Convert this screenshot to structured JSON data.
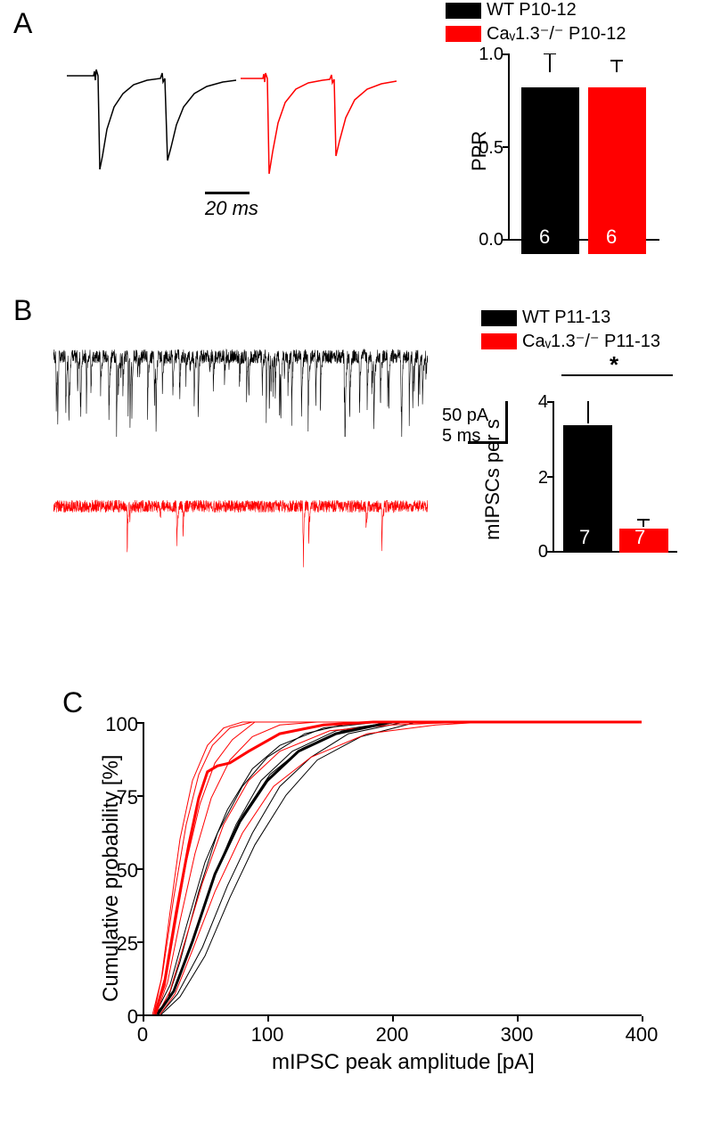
{
  "panelA": {
    "label": "A",
    "legend": {
      "wt": "WT P10-12",
      "ko": "Caᵥ1.3⁻/⁻ P10-12"
    },
    "scalebar": "20 ms",
    "ylabel": "PPR",
    "ylim": [
      0.0,
      1.0
    ],
    "ytick_step": 0.5,
    "yticks": [
      "0.0",
      "0.5",
      "1.0"
    ],
    "bars": {
      "wt": {
        "value": 0.9,
        "err": 0.1,
        "n": "6"
      },
      "ko": {
        "value": 0.9,
        "err": 0.06,
        "n": "6"
      }
    },
    "colors": {
      "wt": "#000000",
      "ko": "#ff0000",
      "error": "#000000"
    },
    "bar_width": 0.7
  },
  "panelB": {
    "label": "B",
    "legend": {
      "wt": "WT P11-13",
      "ko": "Caᵥ1.3⁻/⁻ P11-13"
    },
    "scalebar": {
      "current": "50 pA",
      "time": "5 ms"
    },
    "ylabel": "mIPSCs per s",
    "ylim": [
      0,
      4
    ],
    "ytick_step": 2,
    "yticks": [
      "0",
      "2",
      "4"
    ],
    "bars": {
      "wt": {
        "value": 3.4,
        "err": 1.1,
        "n": "7"
      },
      "ko": {
        "value": 0.65,
        "err": 0.18,
        "n": "7"
      }
    },
    "significance": "*",
    "colors": {
      "wt": "#000000",
      "ko": "#ff0000"
    }
  },
  "panelC": {
    "label": "C",
    "xlabel": "mIPSC peak amplitude [pA]",
    "ylabel": "Cumulative probability [%]",
    "xlim": [
      0,
      400
    ],
    "ylim": [
      0,
      100
    ],
    "xticks": [
      "0",
      "100",
      "200",
      "300",
      "400"
    ],
    "yticks": [
      "0",
      "25",
      "50",
      "75",
      "100"
    ],
    "colors": {
      "wt_thin": "#000000",
      "wt_bold": "#000000",
      "ko_thin": "#ff0000",
      "ko_bold": "#ff0000"
    },
    "line_width_thin": 1.0,
    "line_width_bold": 3.0,
    "curves_wt_thin": [
      [
        [
          10,
          0
        ],
        [
          20,
          5
        ],
        [
          30,
          18
        ],
        [
          45,
          42
        ],
        [
          60,
          62
        ],
        [
          80,
          78
        ],
        [
          100,
          88
        ],
        [
          130,
          96
        ],
        [
          170,
          100
        ],
        [
          400,
          100
        ]
      ],
      [
        [
          12,
          0
        ],
        [
          25,
          8
        ],
        [
          38,
          22
        ],
        [
          55,
          45
        ],
        [
          75,
          65
        ],
        [
          95,
          80
        ],
        [
          120,
          90
        ],
        [
          155,
          97
        ],
        [
          200,
          100
        ],
        [
          400,
          100
        ]
      ],
      [
        [
          15,
          0
        ],
        [
          30,
          6
        ],
        [
          50,
          20
        ],
        [
          70,
          40
        ],
        [
          90,
          58
        ],
        [
          115,
          75
        ],
        [
          140,
          87
        ],
        [
          175,
          95
        ],
        [
          220,
          100
        ],
        [
          400,
          100
        ]
      ],
      [
        [
          10,
          0
        ],
        [
          22,
          10
        ],
        [
          35,
          30
        ],
        [
          50,
          52
        ],
        [
          68,
          70
        ],
        [
          88,
          84
        ],
        [
          110,
          92
        ],
        [
          145,
          98
        ],
        [
          190,
          100
        ],
        [
          400,
          100
        ]
      ],
      [
        [
          14,
          0
        ],
        [
          28,
          7
        ],
        [
          48,
          23
        ],
        [
          68,
          44
        ],
        [
          88,
          62
        ],
        [
          110,
          78
        ],
        [
          135,
          88
        ],
        [
          165,
          96
        ],
        [
          210,
          100
        ],
        [
          400,
          100
        ]
      ],
      [
        [
          12,
          0
        ],
        [
          26,
          9
        ],
        [
          42,
          28
        ],
        [
          60,
          50
        ],
        [
          80,
          68
        ],
        [
          102,
          82
        ],
        [
          128,
          91
        ],
        [
          160,
          97
        ],
        [
          205,
          100
        ],
        [
          400,
          100
        ]
      ]
    ],
    "curve_wt_bold": [
      [
        12,
        0
      ],
      [
        25,
        8
      ],
      [
        40,
        25
      ],
      [
        58,
        48
      ],
      [
        78,
        66
      ],
      [
        100,
        80
      ],
      [
        125,
        90
      ],
      [
        155,
        96
      ],
      [
        200,
        100
      ],
      [
        400,
        100
      ]
    ],
    "curves_ko_thin": [
      [
        [
          8,
          0
        ],
        [
          15,
          12
        ],
        [
          22,
          35
        ],
        [
          30,
          60
        ],
        [
          40,
          80
        ],
        [
          52,
          92
        ],
        [
          65,
          98
        ],
        [
          80,
          100
        ],
        [
          400,
          100
        ]
      ],
      [
        [
          10,
          0
        ],
        [
          18,
          10
        ],
        [
          26,
          30
        ],
        [
          35,
          52
        ],
        [
          46,
          72
        ],
        [
          58,
          86
        ],
        [
          72,
          94
        ],
        [
          90,
          100
        ],
        [
          400,
          100
        ]
      ],
      [
        [
          12,
          0
        ],
        [
          22,
          8
        ],
        [
          34,
          25
        ],
        [
          48,
          45
        ],
        [
          65,
          65
        ],
        [
          85,
          80
        ],
        [
          110,
          90
        ],
        [
          150,
          97
        ],
        [
          200,
          99
        ],
        [
          260,
          100
        ],
        [
          400,
          100
        ]
      ],
      [
        [
          9,
          0
        ],
        [
          16,
          14
        ],
        [
          25,
          40
        ],
        [
          35,
          65
        ],
        [
          45,
          82
        ],
        [
          56,
          92
        ],
        [
          70,
          98
        ],
        [
          88,
          100
        ],
        [
          400,
          100
        ]
      ],
      [
        [
          11,
          0
        ],
        [
          20,
          11
        ],
        [
          30,
          32
        ],
        [
          42,
          55
        ],
        [
          55,
          74
        ],
        [
          70,
          87
        ],
        [
          88,
          95
        ],
        [
          110,
          99
        ],
        [
          140,
          100
        ],
        [
          400,
          100
        ]
      ],
      [
        [
          14,
          0
        ],
        [
          26,
          7
        ],
        [
          40,
          22
        ],
        [
          58,
          42
        ],
        [
          80,
          62
        ],
        [
          105,
          78
        ],
        [
          135,
          88
        ],
        [
          180,
          96
        ],
        [
          235,
          99
        ],
        [
          275,
          100
        ],
        [
          400,
          100
        ]
      ]
    ],
    "curve_ko_bold": [
      [
        10,
        0
      ],
      [
        18,
        12
      ],
      [
        27,
        35
      ],
      [
        37,
        58
      ],
      [
        45,
        74
      ],
      [
        52,
        83
      ],
      [
        60,
        85
      ],
      [
        70,
        86
      ],
      [
        85,
        90
      ],
      [
        110,
        96
      ],
      [
        145,
        99
      ],
      [
        185,
        100
      ],
      [
        400,
        100
      ]
    ]
  }
}
